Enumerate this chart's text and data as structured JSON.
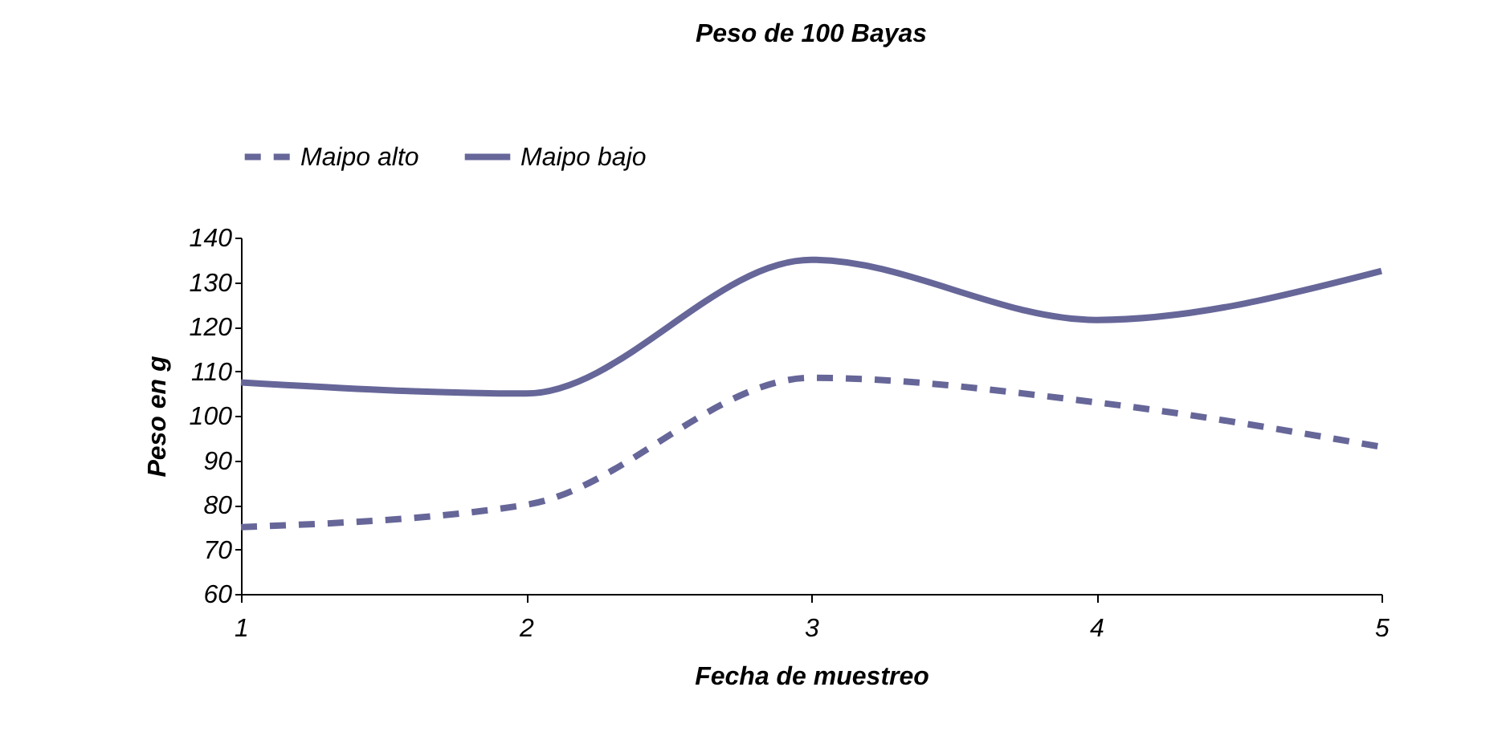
{
  "chart_data": {
    "type": "line",
    "title": "Peso de 100 Bayas",
    "xlabel": "Fecha de muestreo",
    "ylabel": "Peso en g",
    "x": [
      1,
      2,
      3,
      4,
      5
    ],
    "xlim": [
      1,
      5
    ],
    "xticks": [
      1,
      2,
      3,
      4,
      5
    ],
    "ylim": [
      60,
      140
    ],
    "yticks": [
      60,
      70,
      80,
      90,
      100,
      110,
      120,
      130,
      140
    ],
    "series": [
      {
        "name": "Maipo alto",
        "color": "#666699",
        "line_style": "dashed",
        "values": [
          75,
          80,
          108.5,
          103,
          93
        ]
      },
      {
        "name": "Maipo bajo",
        "color": "#666699",
        "line_style": "solid",
        "values": [
          107.5,
          105,
          135,
          121.5,
          132.5
        ]
      }
    ],
    "grid": false,
    "legend": "top",
    "marker": "none"
  }
}
